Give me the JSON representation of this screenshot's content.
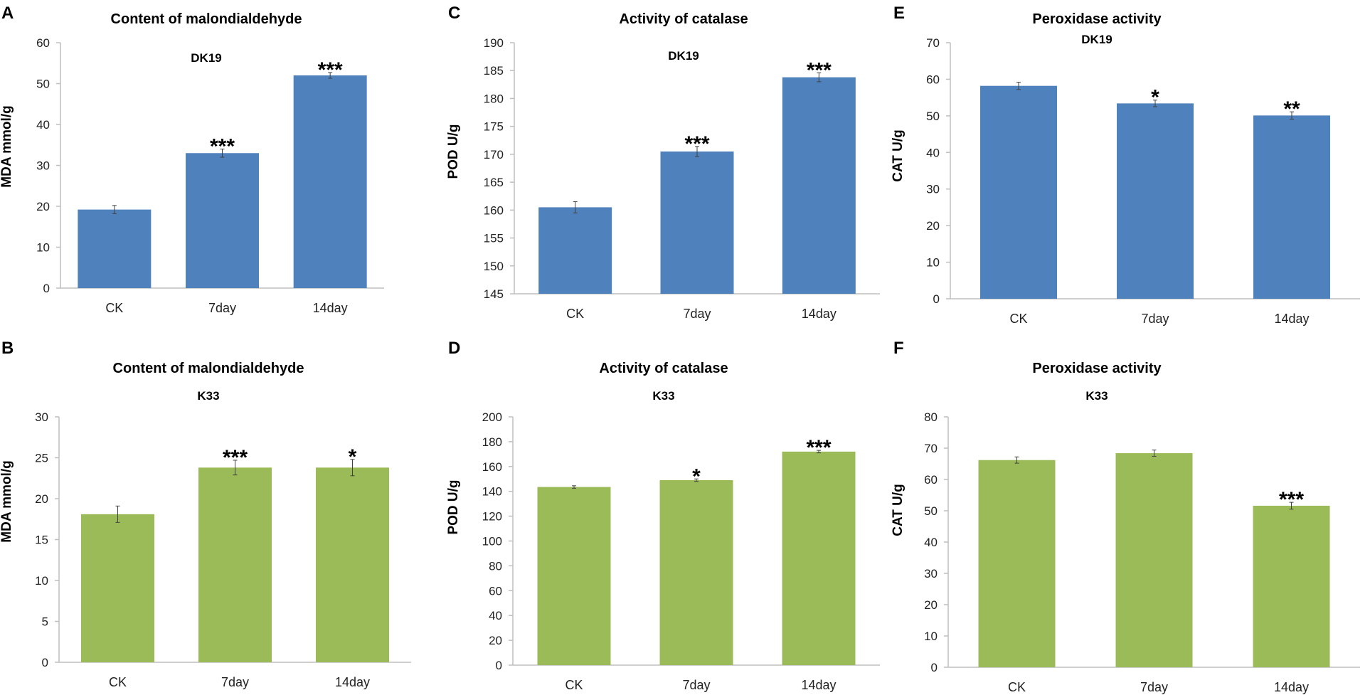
{
  "colors": {
    "blue": "#4F81BD",
    "green": "#9BBB59",
    "axis": "#BFBFBF",
    "errorbar": "#404040"
  },
  "chart_data": [
    {
      "id": "A",
      "panel_label": "A",
      "type": "bar",
      "title": "Content of malondialdehyde",
      "subtitle": "DK19",
      "ylabel": "MDA mmol/g",
      "xlabel": "",
      "categories": [
        "CK",
        "7day",
        "14day"
      ],
      "values": [
        19.2,
        33.0,
        52.0
      ],
      "errors": [
        1.0,
        1.0,
        0.7
      ],
      "significance": [
        "",
        "***",
        "***"
      ],
      "ylim": [
        0,
        60
      ],
      "yticks": [
        0,
        10,
        20,
        30,
        40,
        50,
        60
      ],
      "color": "blue",
      "grid": false
    },
    {
      "id": "B",
      "panel_label": "B",
      "type": "bar",
      "title": "Content of malondialdehyde",
      "subtitle": "K33",
      "ylabel": "MDA mmol/g",
      "xlabel": "",
      "categories": [
        "CK",
        "7day",
        "14day"
      ],
      "values": [
        18.1,
        23.8,
        23.8
      ],
      "errors": [
        1.0,
        0.9,
        1.0
      ],
      "significance": [
        "",
        "***",
        "*"
      ],
      "ylim": [
        0,
        30
      ],
      "yticks": [
        0,
        5,
        10,
        15,
        20,
        25,
        30
      ],
      "color": "green",
      "grid": false
    },
    {
      "id": "C",
      "panel_label": "C",
      "type": "bar",
      "title": "Activity of catalase",
      "subtitle": "DK19",
      "ylabel": "POD U/g",
      "xlabel": "",
      "categories": [
        "CK",
        "7day",
        "14day"
      ],
      "values": [
        160.5,
        170.5,
        183.8
      ],
      "errors": [
        1.0,
        0.9,
        0.8
      ],
      "significance": [
        "",
        "***",
        "***"
      ],
      "ylim": [
        145,
        190
      ],
      "yticks": [
        145,
        150,
        155,
        160,
        165,
        170,
        175,
        180,
        185,
        190
      ],
      "color": "blue",
      "grid": false
    },
    {
      "id": "D",
      "panel_label": "D",
      "type": "bar",
      "title": "Activity of catalase",
      "subtitle": "K33",
      "ylabel": "POD U/g",
      "xlabel": "",
      "categories": [
        "CK",
        "7day",
        "14day"
      ],
      "values": [
        143.5,
        149.0,
        172.0
      ],
      "errors": [
        1.0,
        1.0,
        1.0
      ],
      "significance": [
        "",
        "*",
        "***"
      ],
      "ylim": [
        0,
        200
      ],
      "yticks": [
        0,
        20,
        40,
        60,
        80,
        100,
        120,
        140,
        160,
        180,
        200
      ],
      "color": "green",
      "grid": false
    },
    {
      "id": "E",
      "panel_label": "E",
      "type": "bar",
      "title": "Peroxidase activity",
      "subtitle": "DK19",
      "ylabel": "CAT U/g",
      "xlabel": "",
      "categories": [
        "CK",
        "7day",
        "14day"
      ],
      "values": [
        58.2,
        53.4,
        50.1
      ],
      "errors": [
        1.0,
        0.9,
        1.0
      ],
      "significance": [
        "",
        "*",
        "**"
      ],
      "ylim": [
        0,
        70
      ],
      "yticks": [
        0,
        10,
        20,
        30,
        40,
        50,
        60,
        70
      ],
      "color": "blue",
      "grid": false
    },
    {
      "id": "F",
      "panel_label": "F",
      "type": "bar",
      "title": "Peroxidase activity",
      "subtitle": "K33",
      "ylabel": "CAT U/g",
      "xlabel": "",
      "categories": [
        "CK",
        "7day",
        "14day"
      ],
      "values": [
        66.2,
        68.4,
        51.6
      ],
      "errors": [
        1.0,
        1.0,
        1.1
      ],
      "significance": [
        "",
        "",
        "***"
      ],
      "ylim": [
        0,
        80
      ],
      "yticks": [
        0,
        10,
        20,
        30,
        40,
        50,
        60,
        70,
        80
      ],
      "color": "green",
      "grid": false
    }
  ]
}
